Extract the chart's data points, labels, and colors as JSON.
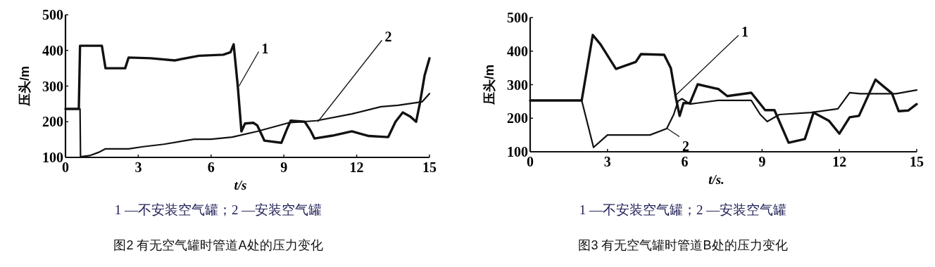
{
  "chart_data": [
    {
      "type": "line",
      "title": "图2 有无空气罐时管道A处的压力变化",
      "xlabel": "t/s",
      "ylabel": "压头/m",
      "xlim": [
        0,
        15
      ],
      "ylim": [
        100,
        500
      ],
      "xticks": [
        0,
        3,
        6,
        9,
        12,
        15
      ],
      "yticks": [
        100,
        200,
        300,
        400,
        500
      ],
      "annotations": [
        "1 —不安装空气罐；2 —安装空气罐",
        {
          "text": "1",
          "x": 7.15,
          "y": 300
        },
        {
          "text": "2",
          "x": 10.4,
          "y": 200
        }
      ],
      "series": [
        {
          "color": "#111111",
          "x": [
            0,
            0.55,
            0.6,
            1.5,
            1.65,
            2.46,
            2.6,
            3.5,
            4.5,
            5.5,
            6.5,
            6.8,
            6.93,
            7.1,
            7.25,
            7.4,
            7.74,
            7.9,
            8.2,
            8.9,
            9.1,
            9.28,
            9.86,
            10.1,
            10.26,
            11,
            11.8,
            12.5,
            13.3,
            13.6,
            13.9,
            14.2,
            14.45,
            14.6,
            14.8,
            15
          ],
          "values": [
            236,
            236,
            413,
            413,
            350,
            350,
            380,
            378,
            372,
            385,
            388,
            395,
            417,
            300,
            173,
            195,
            197,
            190,
            147,
            141,
            175,
            203,
            200,
            175,
            153,
            161,
            173,
            160,
            157,
            200,
            226,
            215,
            200,
            250,
            330,
            378
          ]
        },
        {
          "color": "#111111",
          "x": [
            0,
            0.6,
            0.62,
            1.0,
            1.36,
            1.65,
            2.6,
            3.2,
            4.06,
            5.3,
            6.0,
            6.87,
            7.9,
            9.2,
            10.35,
            11.8,
            13.0,
            13.7,
            14.7,
            15
          ],
          "values": [
            236,
            236,
            102,
            105,
            114,
            124,
            124,
            130,
            137,
            151,
            151,
            157,
            173,
            197,
            203,
            222,
            242,
            246,
            256,
            279
          ]
        }
      ]
    },
    {
      "type": "line",
      "title": "图3 有无空气罐时管道B处的压力变化",
      "xlabel": "t/s.",
      "ylabel": "压头/m",
      "xlim": [
        0,
        15
      ],
      "ylim": [
        100,
        500
      ],
      "xticks": [
        0,
        3,
        6,
        9,
        12,
        15
      ],
      "yticks": [
        100,
        200,
        300,
        400,
        500
      ],
      "annotations": [
        "1 —不安装空气罐；2 —安装空气罐",
        {
          "text": "1",
          "x": 5.6,
          "y": 265
        },
        {
          "text": "2",
          "x": 5.3,
          "y": 170
        }
      ],
      "series": [
        {
          "color": "#111111",
          "x": [
            0,
            2.0,
            2.43,
            2.73,
            3.33,
            4.1,
            4.3,
            5.2,
            5.46,
            5.66,
            5.8,
            5.95,
            6.2,
            6.5,
            7.3,
            7.65,
            8.58,
            9.12,
            9.48,
            10.03,
            10.66,
            11.0,
            11.6,
            12.0,
            12.4,
            12.76,
            13.4,
            14.04,
            14.3,
            14.67,
            15
          ],
          "values": [
            253,
            253,
            448,
            420,
            347,
            368,
            391,
            389,
            349,
            259,
            207,
            245,
            245,
            301,
            287,
            266,
            276,
            224,
            224,
            127,
            138,
            217,
            192,
            154,
            203,
            207,
            315,
            274,
            221,
            223,
            242
          ]
        },
        {
          "color": "#111111",
          "x": [
            0,
            2.0,
            2.46,
            3.0,
            4.65,
            5.3,
            5.57,
            5.74,
            5.9,
            6.2,
            6.48,
            7.3,
            8.58,
            8.93,
            9.2,
            9.67,
            10.9,
            11.94,
            12.4,
            12.8,
            14.2,
            15
          ],
          "values": [
            253,
            253,
            113,
            150,
            150,
            169,
            211,
            251,
            258,
            242,
            245,
            253,
            253,
            211,
            190,
            211,
            217,
            228,
            276,
            273,
            273,
            284
          ]
        }
      ]
    }
  ]
}
